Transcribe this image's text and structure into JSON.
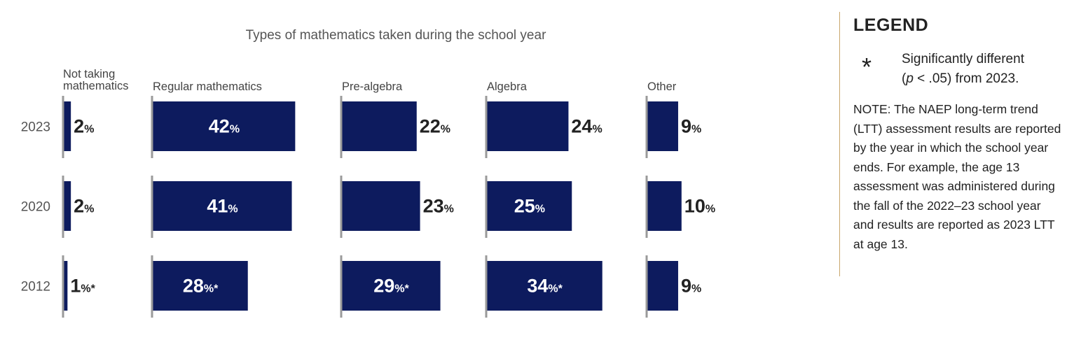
{
  "chart_data": {
    "type": "bar",
    "title": "Types of mathematics taken during the school year",
    "years": [
      "2023",
      "2020",
      "2012"
    ],
    "unit": "%",
    "significance_marker": "*",
    "categories": [
      {
        "name": "Not taking mathematics",
        "values": [
          2,
          2,
          1
        ],
        "significant": [
          false,
          false,
          true
        ]
      },
      {
        "name": "Regular mathematics",
        "values": [
          42,
          41,
          28
        ],
        "significant": [
          false,
          false,
          true
        ]
      },
      {
        "name": "Pre-algebra",
        "values": [
          22,
          23,
          29
        ],
        "significant": [
          false,
          false,
          true
        ]
      },
      {
        "name": "Algebra",
        "values": [
          24,
          25,
          34
        ],
        "significant": [
          false,
          false,
          true
        ]
      },
      {
        "name": "Other",
        "values": [
          9,
          10,
          9
        ],
        "significant": [
          false,
          false,
          false
        ]
      }
    ],
    "bar_color": "#0d1b5e",
    "axis_color": "#9a9a9a"
  },
  "legend": {
    "title": "LEGEND",
    "marker": "*",
    "marker_label_line1": "Significantly different",
    "marker_label_line2_pre": "(",
    "marker_label_line2_italic": "p",
    "marker_label_line2_post": " < .05) from 2023.",
    "note": "NOTE: The NAEP long-term trend (LTT) assessment results are reported by the year in which the school year ends. For example, the age 13 assessment was administered during the fall of the 2022–23 school year and results are reported as 2023 LTT at age 13."
  }
}
